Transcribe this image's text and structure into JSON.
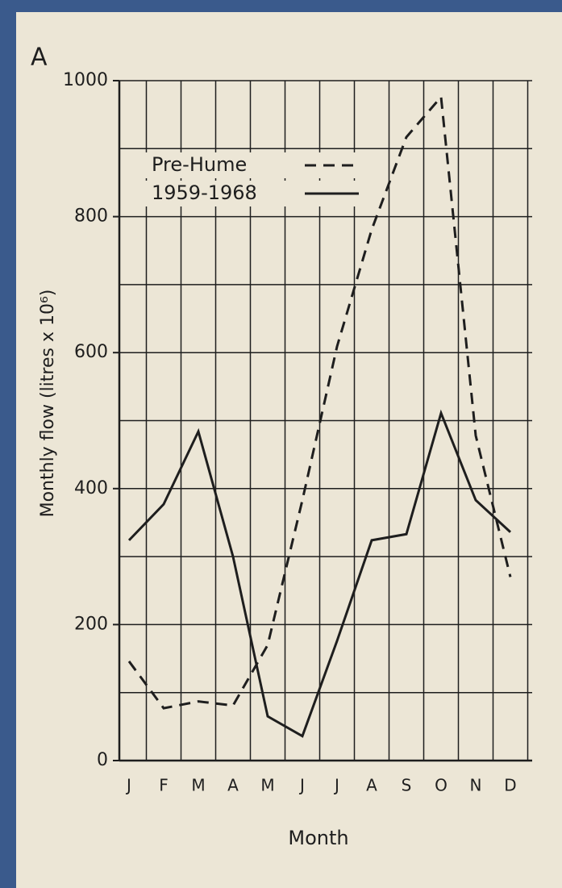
{
  "chart_data": {
    "type": "line",
    "panel_label": "A",
    "x_label": "Month",
    "y_label": "Monthly flow (litres x 10⁶)",
    "categories": [
      "J",
      "F",
      "M",
      "A",
      "M",
      "J",
      "J",
      "A",
      "S",
      "O",
      "N",
      "D"
    ],
    "series": [
      {
        "name": "Pre-Hume",
        "color": "#1e1e1e",
        "dash": true,
        "values": [
          146,
          77,
          87,
          81,
          170,
          383,
          609,
          781,
          917,
          976,
          478,
          270
        ]
      },
      {
        "name": "1959-1968",
        "color": "#1e1e1e",
        "dash": false,
        "values": [
          324,
          377,
          484,
          300,
          65,
          36,
          176,
          324,
          333,
          511,
          383,
          336
        ]
      }
    ],
    "ylim": [
      0,
      1000
    ],
    "yticks": [
      0,
      200,
      400,
      600,
      800,
      1000
    ],
    "y_minor_grid": [
      100,
      300,
      500,
      700,
      900
    ],
    "grid": true
  }
}
